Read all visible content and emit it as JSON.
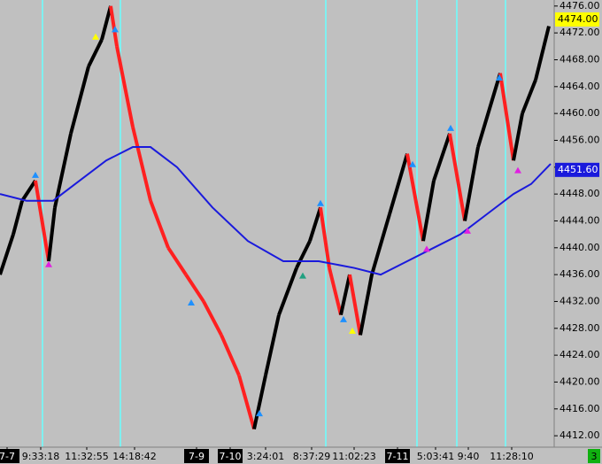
{
  "chart_data": {
    "type": "price",
    "x": [
      0,
      15,
      25,
      40,
      55,
      62,
      80,
      100,
      115,
      125,
      132,
      150,
      170,
      190,
      210,
      230,
      250,
      270,
      287,
      300,
      315,
      335,
      350,
      362,
      372,
      385,
      395,
      407,
      420,
      440,
      460,
      478,
      490,
      508,
      525,
      540,
      565,
      580,
      590,
      605,
      620
    ],
    "series": [
      {
        "color": "#000000",
        "values": [
          4436,
          4442,
          4447,
          4450,
          4438,
          4446,
          4457,
          4467,
          4471,
          4476,
          4470,
          4458,
          4447,
          4440,
          4436,
          4432,
          4427,
          4421,
          4413,
          4421,
          4430,
          4437,
          4441,
          4446,
          4437,
          4430,
          4436,
          4427,
          4436,
          4445,
          4454,
          4441,
          4450,
          4457,
          4444,
          4455,
          4466,
          4453,
          4460,
          4465,
          4473
        ]
      },
      {
        "color": "#1a1adc",
        "x": [
          0,
          30,
          60,
          90,
          120,
          150,
          170,
          200,
          240,
          280,
          320,
          360,
          400,
          430,
          460,
          490,
          520,
          550,
          580,
          600,
          622
        ],
        "values": [
          4448,
          4447,
          4447,
          4450,
          4453,
          4455,
          4455,
          4452,
          4446,
          4441,
          4438,
          4438,
          4437,
          4436,
          4438,
          4440,
          4442,
          4445,
          4448,
          4449.5,
          4452.5
        ]
      }
    ],
    "down_color": "#ff2020",
    "markers": [
      {
        "x": 40,
        "value": 4450.8,
        "color": "#1e90ff"
      },
      {
        "x": 55,
        "value": 4437.5,
        "color": "#e020e0"
      },
      {
        "x": 108,
        "value": 4471.4,
        "color": "#ffff00"
      },
      {
        "x": 130,
        "value": 4472.5,
        "color": "#1e90ff"
      },
      {
        "x": 216,
        "value": 4431.8,
        "color": "#1e90ff"
      },
      {
        "x": 293,
        "value": 4415.3,
        "color": "#1e90ff"
      },
      {
        "x": 342,
        "value": 4435.8,
        "color": "#20a080"
      },
      {
        "x": 362,
        "value": 4446.6,
        "color": "#1e90ff"
      },
      {
        "x": 388,
        "value": 4429.3,
        "color": "#1e90ff"
      },
      {
        "x": 398,
        "value": 4427.6,
        "color": "#ffff00"
      },
      {
        "x": 466,
        "value": 4452.4,
        "color": "#1e90ff"
      },
      {
        "x": 482,
        "value": 4439.8,
        "color": "#e020e0"
      },
      {
        "x": 509,
        "value": 4457.8,
        "color": "#1e90ff"
      },
      {
        "x": 528,
        "value": 4442.5,
        "color": "#e020e0"
      },
      {
        "x": 564,
        "value": 4465.3,
        "color": "#1e90ff"
      },
      {
        "x": 585,
        "value": 4451.5,
        "color": "#e020e0"
      }
    ],
    "last_price": {
      "value": 4474,
      "label": "4474.00"
    },
    "ma_last": {
      "value": 4451.6,
      "label": "4451.60"
    },
    "xlim": [
      0,
      625
    ],
    "ylim": [
      4410.3,
      4476.9
    ],
    "yticks": [
      {
        "value": 4412,
        "label": "4412.00"
      },
      {
        "value": 4416,
        "label": "4416.00"
      },
      {
        "value": 4420,
        "label": "4420.00"
      },
      {
        "value": 4424,
        "label": "4424.00"
      },
      {
        "value": 4428,
        "label": "4428.00"
      },
      {
        "value": 4432,
        "label": "4432.00"
      },
      {
        "value": 4436,
        "label": "4436.00"
      },
      {
        "value": 4440,
        "label": "4440.00"
      },
      {
        "value": 4444,
        "label": "4444.00"
      },
      {
        "value": 4448,
        "label": "4448.00"
      },
      {
        "value": 4452,
        "label": "4452.00"
      },
      {
        "value": 4456,
        "label": "4456.00"
      },
      {
        "value": 4460,
        "label": "4460.00"
      },
      {
        "value": 4464,
        "label": "4464.00"
      },
      {
        "value": 4468,
        "label": "4468.00"
      },
      {
        "value": 4472,
        "label": "4472.00"
      },
      {
        "value": 4476,
        "label": "4476.00"
      }
    ],
    "xticks": [
      {
        "value": 8,
        "label": "7-7"
      },
      {
        "value": 46,
        "label": "9:33:18"
      },
      {
        "value": 98,
        "label": "11:32:55"
      },
      {
        "value": 152,
        "label": "14:18:42"
      },
      {
        "value": 222,
        "label": "7-9"
      },
      {
        "value": 260,
        "label": "7-10"
      },
      {
        "value": 300,
        "label": "3:24:01"
      },
      {
        "value": 352,
        "label": "8:37:29"
      },
      {
        "value": 400,
        "label": "11:02:23"
      },
      {
        "value": 449,
        "label": "7-11"
      },
      {
        "value": 492,
        "label": "5:03:41"
      },
      {
        "value": 529,
        "label": "9:40"
      },
      {
        "value": 578,
        "label": "11:28:10"
      }
    ],
    "counter": "3"
  }
}
